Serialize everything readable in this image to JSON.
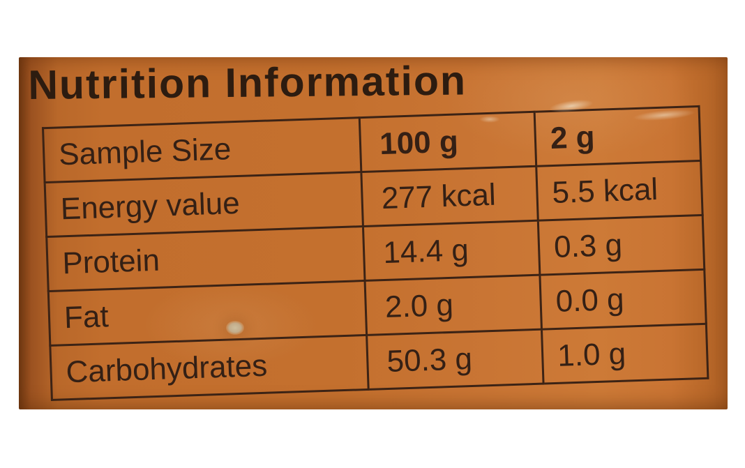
{
  "title": "Nutrition Information",
  "table": {
    "rows": [
      [
        "Sample Size",
        "100 g",
        "2 g"
      ],
      [
        "Energy value",
        "277 kcal",
        "5.5 kcal"
      ],
      [
        "Protein",
        "14.4 g",
        "0.3 g"
      ],
      [
        "Fat",
        "2.0 g",
        "0.0 g"
      ],
      [
        "Carbohydrates",
        "50.3 g",
        "1.0 g"
      ]
    ]
  },
  "colors": {
    "page_background": "#ffffff",
    "label_background": "#c4702e",
    "label_edge_dark": "#6f3812",
    "label_highlight": "#cd7a37",
    "table_border": "#3c2315",
    "text": "#342015",
    "title_text": "#2d1c10"
  }
}
